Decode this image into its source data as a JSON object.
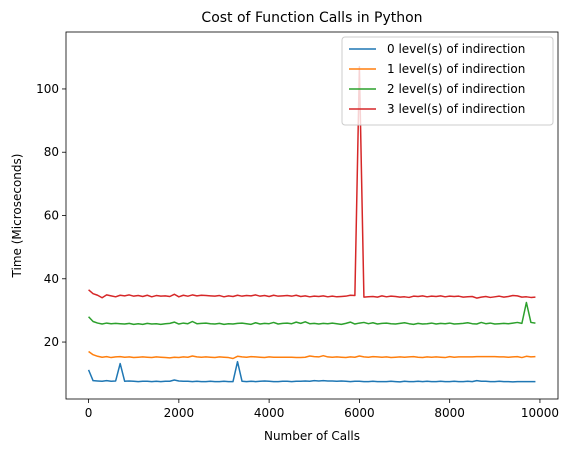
{
  "chart_data": {
    "type": "line",
    "title": "Cost of Function Calls in Python",
    "xlabel": "Number of Calls",
    "ylabel": "Time (Microseconds)",
    "xlim": [
      -500,
      10400
    ],
    "ylim": [
      2,
      118
    ],
    "xticks": [
      0,
      2000,
      4000,
      6000,
      8000,
      10000
    ],
    "yticks": [
      20,
      40,
      60,
      80,
      100
    ],
    "legend_position": "top-right",
    "x": [
      0,
      100,
      200,
      300,
      400,
      500,
      600,
      700,
      800,
      900,
      1000,
      1100,
      1200,
      1300,
      1400,
      1500,
      1600,
      1700,
      1800,
      1900,
      2000,
      2100,
      2200,
      2300,
      2400,
      2500,
      2600,
      2700,
      2800,
      2900,
      3000,
      3100,
      3200,
      3300,
      3400,
      3500,
      3600,
      3700,
      3800,
      3900,
      4000,
      4100,
      4200,
      4300,
      4400,
      4500,
      4600,
      4700,
      4800,
      4900,
      5000,
      5100,
      5200,
      5300,
      5400,
      5500,
      5600,
      5700,
      5800,
      5900,
      6000,
      6100,
      6200,
      6300,
      6400,
      6500,
      6600,
      6700,
      6800,
      6900,
      7000,
      7100,
      7200,
      7300,
      7400,
      7500,
      7600,
      7700,
      7800,
      7900,
      8000,
      8100,
      8200,
      8300,
      8400,
      8500,
      8600,
      8700,
      8800,
      8900,
      9000,
      9100,
      9200,
      9300,
      9400,
      9500,
      9600,
      9700,
      9800,
      9900
    ],
    "series": [
      {
        "name": "0 level(s) of indirection",
        "color": "#1f77b4",
        "values": [
          11.2,
          7.8,
          7.7,
          7.6,
          7.8,
          7.6,
          7.7,
          13.2,
          7.6,
          7.7,
          7.6,
          7.5,
          7.6,
          7.6,
          7.5,
          7.6,
          7.5,
          7.6,
          7.6,
          8.0,
          7.7,
          7.6,
          7.6,
          7.5,
          7.6,
          7.5,
          7.5,
          7.6,
          7.5,
          7.5,
          7.6,
          7.5,
          7.5,
          13.8,
          7.6,
          7.5,
          7.6,
          7.5,
          7.6,
          7.7,
          7.6,
          7.5,
          7.5,
          7.6,
          7.6,
          7.5,
          7.6,
          7.6,
          7.7,
          7.6,
          7.8,
          7.7,
          7.8,
          7.7,
          7.7,
          7.6,
          7.7,
          7.6,
          7.5,
          7.6,
          7.6,
          7.5,
          7.5,
          7.6,
          7.5,
          7.5,
          7.5,
          7.6,
          7.5,
          7.4,
          7.6,
          7.5,
          7.5,
          7.6,
          7.5,
          7.6,
          7.5,
          7.5,
          7.6,
          7.5,
          7.5,
          7.6,
          7.5,
          7.5,
          7.6,
          7.5,
          7.8,
          7.6,
          7.6,
          7.5,
          7.5,
          7.6,
          7.5,
          7.5,
          7.4,
          7.5,
          7.5,
          7.5,
          7.5,
          7.5
        ]
      },
      {
        "name": "1 level(s) of indirection",
        "color": "#ff7f0e",
        "values": [
          17.0,
          16.0,
          15.5,
          15.2,
          15.4,
          15.1,
          15.3,
          15.4,
          15.2,
          15.3,
          15.1,
          15.2,
          15.3,
          15.2,
          15.1,
          15.3,
          15.2,
          15.1,
          15.0,
          15.2,
          15.1,
          15.3,
          15.2,
          15.6,
          15.3,
          15.2,
          15.3,
          15.2,
          15.1,
          15.3,
          15.2,
          15.1,
          14.8,
          15.5,
          15.3,
          15.2,
          15.4,
          15.3,
          15.2,
          15.1,
          15.3,
          15.2,
          15.2,
          15.2,
          15.2,
          15.2,
          15.1,
          15.1,
          15.2,
          15.6,
          15.4,
          15.3,
          15.7,
          15.3,
          15.2,
          15.3,
          15.2,
          15.1,
          15.3,
          15.2,
          15.6,
          15.3,
          15.2,
          15.4,
          15.3,
          15.2,
          15.3,
          15.1,
          15.2,
          15.3,
          15.2,
          15.3,
          15.4,
          15.2,
          15.1,
          15.3,
          15.2,
          15.3,
          15.2,
          15.1,
          15.4,
          15.2,
          15.3,
          15.3,
          15.3,
          15.3,
          15.4,
          15.4,
          15.4,
          15.4,
          15.4,
          15.3,
          15.3,
          15.2,
          15.3,
          15.4,
          15.1,
          15.5,
          15.3,
          15.4
        ]
      },
      {
        "name": "2 level(s) of indirection",
        "color": "#2ca02c",
        "values": [
          28.0,
          26.5,
          26.0,
          25.7,
          26.0,
          25.8,
          25.9,
          25.8,
          25.7,
          25.9,
          25.6,
          25.8,
          25.6,
          25.9,
          25.7,
          25.8,
          25.6,
          25.8,
          25.9,
          26.3,
          25.7,
          26.0,
          25.8,
          26.5,
          25.8,
          25.9,
          26.0,
          25.8,
          25.7,
          25.9,
          25.6,
          25.8,
          25.7,
          25.9,
          26.0,
          25.8,
          25.6,
          26.1,
          25.7,
          25.9,
          25.8,
          26.2,
          25.7,
          25.9,
          26.0,
          25.8,
          26.3,
          25.9,
          26.4,
          25.8,
          25.9,
          25.7,
          25.9,
          25.8,
          26.0,
          25.8,
          25.6,
          25.9,
          26.3,
          25.7,
          26.0,
          26.2,
          25.8,
          26.1,
          25.7,
          25.9,
          26.0,
          25.8,
          25.7,
          25.9,
          26.1,
          25.8,
          25.6,
          25.9,
          25.7,
          25.8,
          26.0,
          25.7,
          25.9,
          25.8,
          26.0,
          25.7,
          25.8,
          25.9,
          26.1,
          25.8,
          25.7,
          26.2,
          25.8,
          26.0,
          25.7,
          25.8,
          25.9,
          25.8,
          26.0,
          26.2,
          25.9,
          32.5,
          26.2,
          26.0
        ]
      },
      {
        "name": "3 level(s) of indirection",
        "color": "#d62728",
        "values": [
          36.5,
          35.3,
          34.8,
          34.0,
          34.9,
          34.6,
          34.3,
          34.8,
          34.6,
          34.9,
          34.5,
          34.7,
          34.4,
          34.8,
          34.3,
          34.7,
          34.5,
          34.6,
          34.4,
          35.1,
          34.3,
          34.8,
          34.5,
          34.9,
          34.6,
          34.8,
          34.7,
          34.6,
          34.5,
          34.7,
          34.3,
          34.6,
          34.4,
          34.8,
          34.5,
          34.7,
          34.6,
          34.9,
          34.5,
          34.7,
          34.4,
          34.8,
          34.5,
          34.6,
          34.7,
          34.5,
          34.8,
          34.4,
          34.6,
          34.3,
          34.5,
          34.4,
          34.6,
          34.3,
          34.5,
          34.3,
          34.4,
          34.5,
          34.8,
          34.7,
          107.0,
          34.2,
          34.3,
          34.4,
          34.2,
          34.6,
          34.3,
          34.5,
          34.4,
          34.2,
          34.3,
          34.1,
          34.5,
          34.4,
          34.6,
          34.3,
          34.5,
          34.4,
          34.6,
          34.3,
          34.5,
          34.4,
          34.5,
          34.2,
          34.3,
          34.4,
          33.9,
          34.2,
          34.4,
          34.1,
          34.3,
          34.5,
          34.2,
          34.4,
          34.7,
          34.6,
          34.2,
          34.3,
          34.1,
          34.2
        ]
      }
    ]
  }
}
